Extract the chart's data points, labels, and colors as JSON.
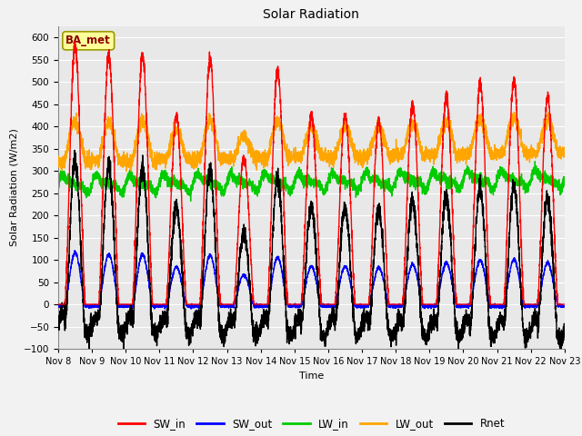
{
  "title": "Solar Radiation",
  "ylabel": "Solar Radiation (W/m2)",
  "xlabel": "Time",
  "ylim": [
    -100,
    625
  ],
  "yticks": [
    -100,
    -50,
    0,
    50,
    100,
    150,
    200,
    250,
    300,
    350,
    400,
    450,
    500,
    550,
    600
  ],
  "xtick_labels": [
    "Nov 8",
    "Nov 9",
    "Nov 10",
    "Nov 11",
    "Nov 12",
    "Nov 13",
    "Nov 14",
    "Nov 15",
    "Nov 16",
    "Nov 17",
    "Nov 18",
    "Nov 19",
    "Nov 20",
    "Nov 21",
    "Nov 22",
    "Nov 23"
  ],
  "n_days": 15,
  "annotation_text": "BA_met",
  "annotation_color": "#8B0000",
  "annotation_bg": "#FFFF99",
  "colors": {
    "SW_in": "#FF0000",
    "SW_out": "#0000FF",
    "LW_in": "#00CC00",
    "LW_out": "#FFA500",
    "Rnet": "#000000"
  },
  "line_width": 1.0,
  "bg_color": "#E8E8E8",
  "grid_color": "#FFFFFF",
  "sw_in_peaks": [
    580,
    560,
    560,
    420,
    550,
    330,
    525,
    425,
    425,
    410,
    450,
    465,
    495,
    505,
    465
  ],
  "lw_in_base": 270,
  "lw_out_base": 320,
  "legend_ncol": 5
}
